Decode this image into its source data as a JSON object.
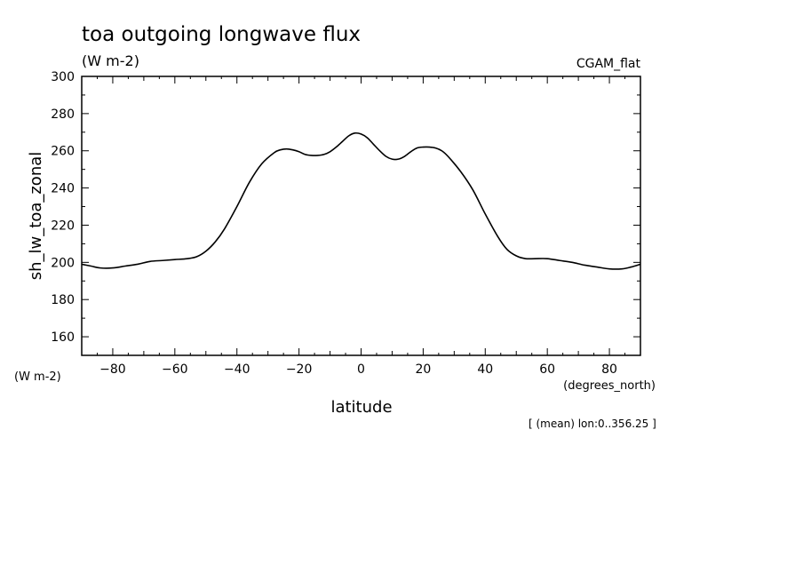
{
  "chart_data": {
    "type": "line",
    "title": "toa outgoing longwave flux",
    "units": "(W m-2)",
    "model_label": "CGAM_flat",
    "ylabel": "sh_lw_toa_zonal",
    "yunits": "(W m-2)",
    "xlabel": "latitude",
    "xunits": "(degrees_north)",
    "note": "[ (mean) lon:0..356.25 ]",
    "xlim": [
      -90,
      90
    ],
    "ylim": [
      150,
      300
    ],
    "xticks": [
      -80,
      -60,
      -40,
      -20,
      0,
      20,
      40,
      60,
      80
    ],
    "yticks": [
      160,
      180,
      200,
      220,
      240,
      260,
      280,
      300
    ],
    "grid": false,
    "series": [
      {
        "x": [
          -90,
          -87,
          -84,
          -80,
          -76,
          -72,
          -68,
          -64,
          -60,
          -56,
          -53,
          -50,
          -47,
          -44,
          -40,
          -36,
          -32,
          -28,
          -26,
          -24,
          -22,
          -20,
          -18,
          -16,
          -14,
          -12,
          -10,
          -8,
          -6,
          -4,
          -2,
          0,
          2,
          4,
          6,
          8,
          10,
          12,
          14,
          16,
          18,
          20,
          22,
          24,
          26,
          28,
          32,
          36,
          40,
          44,
          47,
          50,
          53,
          56,
          60,
          64,
          68,
          72,
          76,
          80,
          84,
          87,
          90
        ],
        "y": [
          199,
          198,
          197,
          197,
          198,
          199,
          200.5,
          201,
          201.5,
          202,
          203,
          206,
          211,
          218,
          230,
          243,
          253,
          259,
          260.5,
          261,
          260.5,
          259.5,
          258,
          257.5,
          257.5,
          258,
          259.5,
          262,
          265,
          268,
          269.5,
          269,
          267,
          263.5,
          260,
          257,
          255.5,
          255.5,
          257,
          259.5,
          261.5,
          262,
          262,
          261.5,
          260,
          257,
          249,
          239,
          226,
          214,
          207,
          203.5,
          202,
          202,
          202,
          201,
          200,
          198.5,
          197.5,
          196.5,
          196.5,
          197.5,
          199
        ]
      }
    ]
  }
}
